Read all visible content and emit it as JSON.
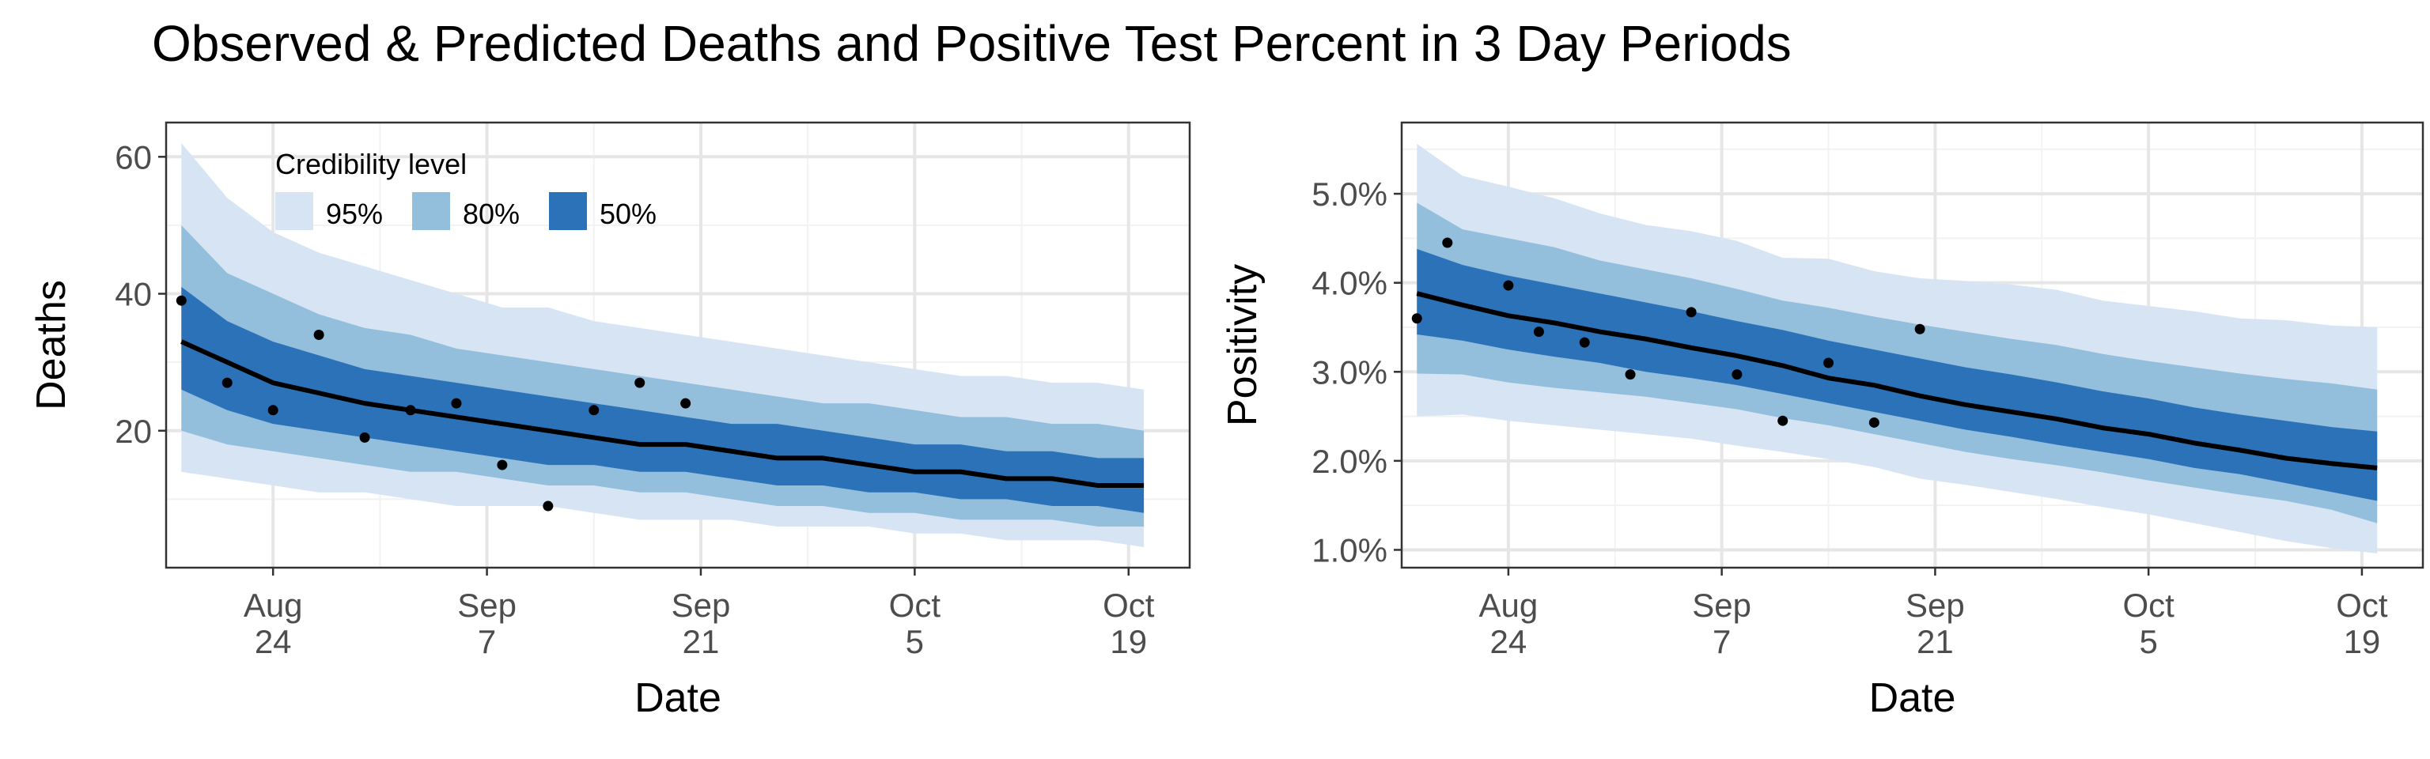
{
  "title": "Observed & Predicted Deaths and Positive Test Percent in 3 Day Periods",
  "colors": {
    "band95": "#d6e4f4",
    "band80": "#93bedc",
    "band50": "#2c72b9",
    "median": "#000000",
    "points": "#000000",
    "grid_major": "#e6e6e6",
    "grid_minor": "#f2f2f2",
    "axis_text": "#4d4d4d"
  },
  "legend": {
    "title": "Credibility level",
    "placement": "top-left inside left panel",
    "items": [
      {
        "label": "95%",
        "color": "#d6e4f4"
      },
      {
        "label": "80%",
        "color": "#93bedc"
      },
      {
        "label": "50%",
        "color": "#2c72b9"
      }
    ]
  },
  "chart_data": [
    {
      "type": "area",
      "xlabel": "Date",
      "ylabel": "Deaths",
      "xlim": [
        "2020-08-17",
        "2020-10-23"
      ],
      "ylim": [
        0,
        65
      ],
      "xticks": [
        {
          "date": "2020-08-24",
          "line1": "Aug",
          "line2": "24"
        },
        {
          "date": "2020-09-07",
          "line1": "Sep",
          "line2": "7"
        },
        {
          "date": "2020-09-21",
          "line1": "Sep",
          "line2": "21"
        },
        {
          "date": "2020-10-05",
          "line1": "Oct",
          "line2": "5"
        },
        {
          "date": "2020-10-19",
          "line1": "Oct",
          "line2": "19"
        }
      ],
      "yticks": [
        {
          "value": 20,
          "label": "20"
        },
        {
          "value": 40,
          "label": "40"
        },
        {
          "value": 60,
          "label": "60"
        }
      ],
      "grid": true,
      "x": [
        "2020-08-18",
        "2020-08-21",
        "2020-08-24",
        "2020-08-27",
        "2020-08-30",
        "2020-09-02",
        "2020-09-05",
        "2020-09-08",
        "2020-09-11",
        "2020-09-14",
        "2020-09-17",
        "2020-09-20",
        "2020-09-23",
        "2020-09-26",
        "2020-09-29",
        "2020-10-02",
        "2020-10-05",
        "2020-10-08",
        "2020-10-11",
        "2020-10-14",
        "2020-10-17",
        "2020-10-20"
      ],
      "median": [
        33,
        30,
        27,
        25.5,
        24,
        23,
        22,
        21,
        20,
        19,
        18,
        18,
        17,
        16,
        16,
        15,
        14,
        14,
        13,
        13,
        12,
        12
      ],
      "lower95": [
        14,
        13,
        12,
        11,
        11,
        10,
        9,
        9,
        9,
        8,
        7,
        7,
        7,
        6,
        6,
        6,
        5,
        5,
        4,
        4,
        4,
        3
      ],
      "upper95": [
        62,
        54,
        49,
        46,
        44,
        42,
        40,
        38,
        38,
        36,
        35,
        34,
        33,
        32,
        31,
        30,
        29,
        28,
        28,
        27,
        27,
        26
      ],
      "lower80": [
        20,
        18,
        17,
        16,
        15,
        14,
        14,
        13,
        12,
        12,
        11,
        11,
        10,
        9,
        9,
        8,
        8,
        7,
        7,
        7,
        6,
        6
      ],
      "upper80": [
        50,
        43,
        40,
        37,
        35,
        34,
        32,
        31,
        30,
        29,
        28,
        27,
        26,
        25,
        24,
        24,
        23,
        22,
        22,
        21,
        21,
        20
      ],
      "lower50": [
        26,
        23,
        21,
        20,
        19,
        18,
        17,
        16,
        15,
        15,
        14,
        14,
        13,
        12,
        12,
        11,
        11,
        10,
        10,
        9,
        9,
        8
      ],
      "upper50": [
        41,
        36,
        33,
        31,
        29,
        28,
        27,
        26,
        25,
        24,
        23,
        22,
        21,
        21,
        20,
        19,
        18,
        18,
        17,
        17,
        16,
        16
      ],
      "observed": {
        "x": [
          "2020-08-18",
          "2020-08-21",
          "2020-08-24",
          "2020-08-27",
          "2020-08-30",
          "2020-09-02",
          "2020-09-05",
          "2020-09-08",
          "2020-09-11",
          "2020-09-14",
          "2020-09-17",
          "2020-09-20"
        ],
        "y": [
          39,
          27,
          23,
          34,
          19,
          23,
          24,
          15,
          9,
          23,
          27,
          24
        ]
      }
    },
    {
      "type": "area",
      "xlabel": "Date",
      "ylabel": "Positivity",
      "xlim": [
        "2020-08-17",
        "2020-10-23"
      ],
      "ylim": [
        0.8,
        5.8
      ],
      "xticks": [
        {
          "date": "2020-08-24",
          "line1": "Aug",
          "line2": "24"
        },
        {
          "date": "2020-09-07",
          "line1": "Sep",
          "line2": "7"
        },
        {
          "date": "2020-09-21",
          "line1": "Sep",
          "line2": "21"
        },
        {
          "date": "2020-10-05",
          "line1": "Oct",
          "line2": "5"
        },
        {
          "date": "2020-10-19",
          "line1": "Oct",
          "line2": "19"
        }
      ],
      "yticks": [
        {
          "value": 1,
          "label": "1.0%"
        },
        {
          "value": 2,
          "label": "2.0%"
        },
        {
          "value": 3,
          "label": "3.0%"
        },
        {
          "value": 4,
          "label": "4.0%"
        },
        {
          "value": 5,
          "label": "5.0%"
        }
      ],
      "grid": true,
      "x": [
        "2020-08-18",
        "2020-08-21",
        "2020-08-24",
        "2020-08-27",
        "2020-08-30",
        "2020-09-02",
        "2020-09-05",
        "2020-09-08",
        "2020-09-11",
        "2020-09-14",
        "2020-09-17",
        "2020-09-20",
        "2020-09-23",
        "2020-09-26",
        "2020-09-29",
        "2020-10-02",
        "2020-10-05",
        "2020-10-08",
        "2020-10-11",
        "2020-10-14",
        "2020-10-17",
        "2020-10-20"
      ],
      "median": [
        3.88,
        3.75,
        3.63,
        3.55,
        3.45,
        3.37,
        3.27,
        3.18,
        3.07,
        2.93,
        2.85,
        2.73,
        2.63,
        2.55,
        2.47,
        2.37,
        2.3,
        2.2,
        2.12,
        2.03,
        1.97,
        1.92
      ],
      "lower95": [
        2.5,
        2.52,
        2.45,
        2.4,
        2.35,
        2.3,
        2.25,
        2.17,
        2.1,
        2.02,
        1.93,
        1.8,
        1.73,
        1.65,
        1.57,
        1.48,
        1.4,
        1.3,
        1.2,
        1.1,
        1.02,
        0.96
      ],
      "upper95": [
        5.56,
        5.2,
        5.08,
        4.95,
        4.78,
        4.65,
        4.58,
        4.47,
        4.28,
        4.27,
        4.13,
        4.05,
        4.02,
        3.98,
        3.92,
        3.8,
        3.74,
        3.68,
        3.6,
        3.58,
        3.52,
        3.5
      ],
      "lower80": [
        2.98,
        2.97,
        2.88,
        2.82,
        2.77,
        2.72,
        2.65,
        2.58,
        2.48,
        2.4,
        2.3,
        2.2,
        2.1,
        2.02,
        1.95,
        1.87,
        1.78,
        1.7,
        1.62,
        1.55,
        1.45,
        1.3
      ],
      "upper80": [
        4.9,
        4.6,
        4.5,
        4.4,
        4.25,
        4.15,
        4.05,
        3.93,
        3.8,
        3.72,
        3.62,
        3.53,
        3.45,
        3.37,
        3.3,
        3.2,
        3.12,
        3.05,
        2.98,
        2.92,
        2.87,
        2.8
      ],
      "lower50": [
        3.42,
        3.35,
        3.25,
        3.17,
        3.1,
        3.0,
        2.93,
        2.85,
        2.75,
        2.65,
        2.55,
        2.45,
        2.35,
        2.27,
        2.18,
        2.1,
        2.02,
        1.92,
        1.85,
        1.75,
        1.65,
        1.55
      ],
      "upper50": [
        4.38,
        4.2,
        4.08,
        3.98,
        3.88,
        3.78,
        3.68,
        3.57,
        3.47,
        3.35,
        3.25,
        3.15,
        3.05,
        2.97,
        2.88,
        2.78,
        2.7,
        2.6,
        2.52,
        2.45,
        2.38,
        2.33
      ],
      "observed": {
        "x": [
          "2020-08-18",
          "2020-08-20",
          "2020-08-24",
          "2020-08-26",
          "2020-08-29",
          "2020-09-01",
          "2020-09-05",
          "2020-09-08",
          "2020-09-11",
          "2020-09-14",
          "2020-09-17",
          "2020-09-20"
        ],
        "y": [
          3.6,
          4.45,
          3.97,
          3.45,
          3.33,
          2.97,
          3.67,
          2.97,
          2.45,
          3.1,
          2.43,
          3.48
        ]
      }
    }
  ]
}
